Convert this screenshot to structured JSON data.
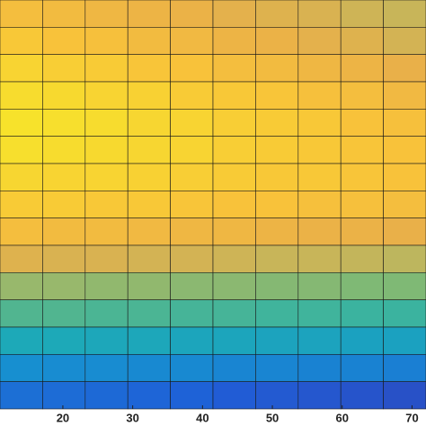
{
  "chart_data": {
    "type": "heatmap",
    "xlim": [
      11,
      72
    ],
    "xticks": [
      20,
      30,
      40,
      50,
      60,
      70
    ],
    "zlim": [
      0,
      1
    ],
    "colormap": [
      [
        0,
        "#3b36a6"
      ],
      [
        0.15,
        "#1f5fd8"
      ],
      [
        0.3,
        "#178fd0"
      ],
      [
        0.45,
        "#1fb0b2"
      ],
      [
        0.6,
        "#72b97a"
      ],
      [
        0.72,
        "#bdb65e"
      ],
      [
        0.8,
        "#e9b049"
      ],
      [
        0.88,
        "#f8c23a"
      ],
      [
        1,
        "#f7e52a"
      ]
    ],
    "grid_color": "#1a1a1a",
    "z": [
      [
        0.86,
        0.85,
        0.83,
        0.82,
        0.81,
        0.79,
        0.78,
        0.77,
        0.75,
        0.74
      ],
      [
        0.9,
        0.88,
        0.87,
        0.85,
        0.84,
        0.82,
        0.81,
        0.79,
        0.78,
        0.76
      ],
      [
        0.94,
        0.92,
        0.91,
        0.89,
        0.88,
        0.86,
        0.85,
        0.83,
        0.82,
        0.8
      ],
      [
        0.97,
        0.96,
        0.94,
        0.93,
        0.91,
        0.9,
        0.89,
        0.87,
        0.86,
        0.84
      ],
      [
        0.99,
        0.98,
        0.97,
        0.95,
        0.94,
        0.92,
        0.91,
        0.9,
        0.88,
        0.87
      ],
      [
        0.98,
        0.97,
        0.96,
        0.95,
        0.94,
        0.92,
        0.91,
        0.9,
        0.89,
        0.88
      ],
      [
        0.95,
        0.94,
        0.94,
        0.93,
        0.92,
        0.91,
        0.9,
        0.9,
        0.89,
        0.88
      ],
      [
        0.91,
        0.91,
        0.9,
        0.9,
        0.89,
        0.88,
        0.88,
        0.87,
        0.87,
        0.86
      ],
      [
        0.86,
        0.85,
        0.85,
        0.84,
        0.83,
        0.83,
        0.82,
        0.81,
        0.81,
        0.8
      ],
      [
        0.78,
        0.77,
        0.77,
        0.76,
        0.76,
        0.75,
        0.74,
        0.74,
        0.73,
        0.72
      ],
      [
        0.66,
        0.66,
        0.65,
        0.65,
        0.64,
        0.64,
        0.63,
        0.63,
        0.62,
        0.62
      ],
      [
        0.54,
        0.54,
        0.53,
        0.53,
        0.52,
        0.52,
        0.51,
        0.51,
        0.5,
        0.5
      ],
      [
        0.42,
        0.42,
        0.41,
        0.41,
        0.4,
        0.4,
        0.39,
        0.39,
        0.38,
        0.38
      ],
      [
        0.3,
        0.29,
        0.29,
        0.28,
        0.28,
        0.27,
        0.27,
        0.26,
        0.26,
        0.25
      ],
      [
        0.2,
        0.19,
        0.18,
        0.17,
        0.16,
        0.14,
        0.13,
        0.12,
        0.11,
        0.1
      ]
    ]
  }
}
